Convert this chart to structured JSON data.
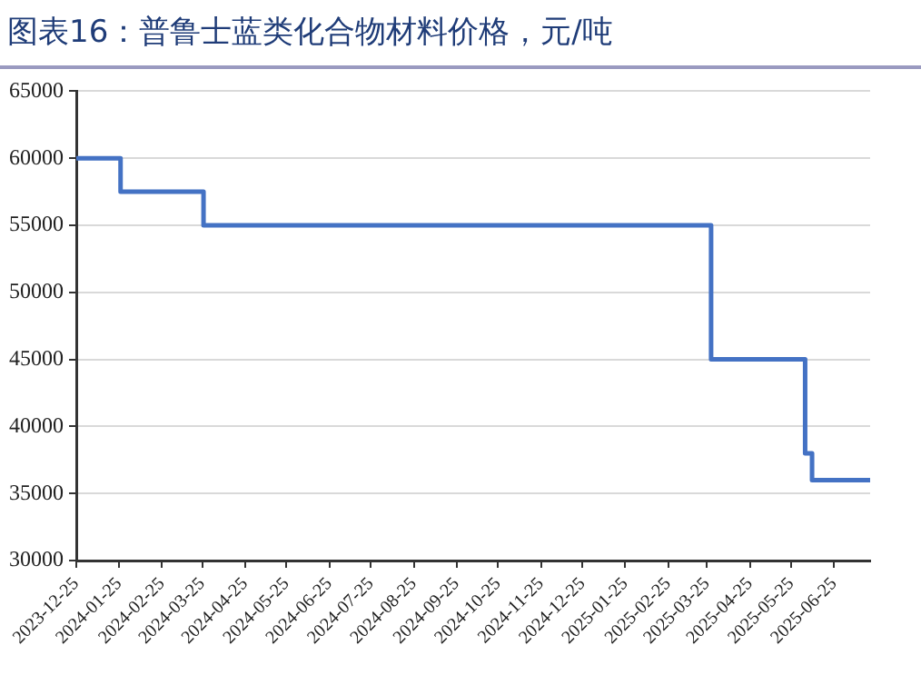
{
  "chart_data": {
    "type": "step",
    "title": "图表16：普鲁士蓝类化合物材料价格，元/吨",
    "x": [
      "2023-12-25",
      "2024-01-26",
      "2024-03-26",
      "2025-03-28",
      "2025-06-04",
      "2025-06-09",
      "2025-07-21"
    ],
    "series": [
      {
        "color": "#4472c4",
        "values": [
          60000,
          57500,
          55000,
          45000,
          38000,
          36000,
          36000
        ]
      }
    ],
    "xlim": [
      "2023-12-25",
      "2025-07-21"
    ],
    "xticks": [
      "2023-12-25",
      "2024-01-25",
      "2024-02-25",
      "2024-03-25",
      "2024-04-25",
      "2024-05-25",
      "2024-06-25",
      "2024-07-25",
      "2024-08-25",
      "2024-09-25",
      "2024-10-25",
      "2024-11-25",
      "2024-12-25",
      "2025-01-25",
      "2025-02-25",
      "2025-03-25",
      "2025-04-25",
      "2025-05-25",
      "2025-06-25"
    ],
    "ylim": [
      30000,
      65000
    ],
    "yticks": [
      30000,
      35000,
      40000,
      45000,
      50000,
      55000,
      60000,
      65000
    ],
    "grid": "y",
    "legend": false,
    "marker": "none",
    "line_style": "solid"
  }
}
